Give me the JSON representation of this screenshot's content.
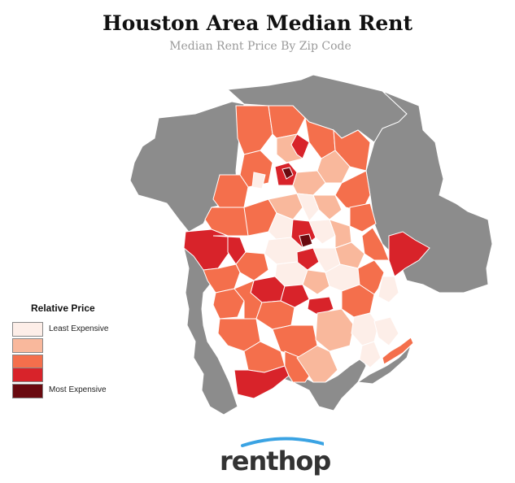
{
  "title": "Houston Area Median Rent",
  "subtitle": "Median Rent Price By Zip Code",
  "legend": {
    "title": "Relative Price",
    "items": [
      {
        "label": "Least Expensive",
        "color": "#fdeee8"
      },
      {
        "label": "",
        "color": "#f9b89c"
      },
      {
        "label": "",
        "color": "#f46f4c"
      },
      {
        "label": "",
        "color": "#d8232a"
      },
      {
        "label": "Most Expensive",
        "color": "#6a0a10"
      }
    ]
  },
  "colors": {
    "no_data": "#8c8c8c",
    "border": "#ffffff",
    "logo_arc": "#3aa3e3"
  },
  "logo": {
    "text": "renthop"
  }
}
